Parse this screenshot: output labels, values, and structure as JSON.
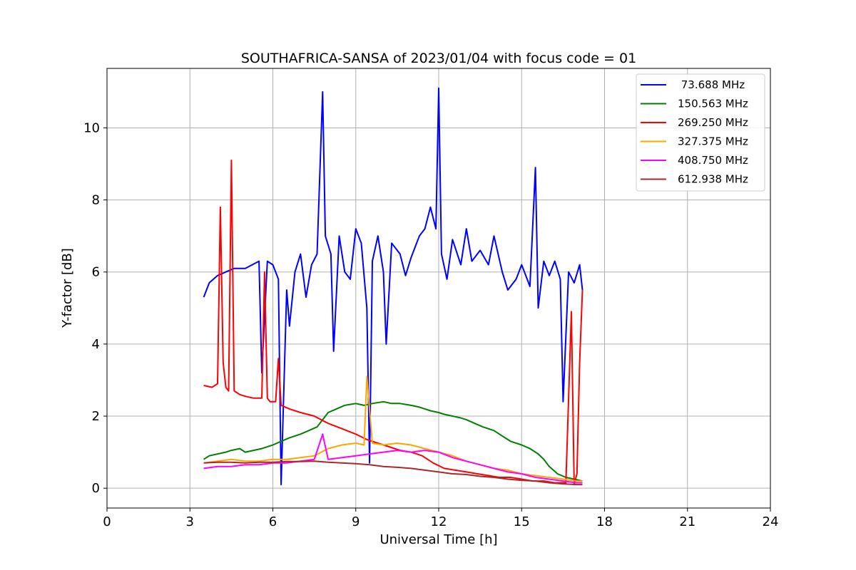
{
  "chart_data": {
    "type": "line",
    "title": "SOUTHAFRICA-SANSA of 2023/01/04 with focus code = 01",
    "xlabel": "Universal Time [h]",
    "ylabel": "Y-factor [dB]",
    "xlim": [
      0,
      24
    ],
    "ylim": [
      -0.55,
      11.65
    ],
    "xticks": [
      0,
      3,
      6,
      9,
      12,
      15,
      18,
      21,
      24
    ],
    "yticks": [
      0,
      2,
      4,
      6,
      8,
      10
    ],
    "grid": true,
    "legend_position": "upper right",
    "series": [
      {
        "name": " 73.688 MHz",
        "color": "#0000ff",
        "x": [
          3.5,
          3.7,
          4.0,
          4.3,
          4.6,
          5.0,
          5.5,
          5.6,
          5.8,
          6.0,
          6.2,
          6.3,
          6.5,
          6.6,
          6.8,
          7.0,
          7.2,
          7.4,
          7.6,
          7.8,
          7.9,
          8.1,
          8.2,
          8.4,
          8.6,
          8.8,
          9.0,
          9.2,
          9.4,
          9.5,
          9.6,
          9.8,
          10.0,
          10.1,
          10.3,
          10.6,
          10.8,
          11.0,
          11.3,
          11.5,
          11.7,
          11.9,
          12.0,
          12.1,
          12.3,
          12.5,
          12.8,
          13.0,
          13.2,
          13.5,
          13.8,
          14.0,
          14.3,
          14.5,
          14.8,
          15.0,
          15.3,
          15.5,
          15.6,
          15.8,
          16.0,
          16.2,
          16.4,
          16.5,
          16.7,
          16.9,
          17.1,
          17.2
        ],
        "y": [
          5.3,
          5.7,
          5.9,
          6.0,
          6.1,
          6.1,
          6.3,
          3.2,
          6.3,
          6.2,
          5.8,
          0.1,
          5.5,
          4.5,
          6.0,
          6.5,
          5.3,
          6.2,
          6.5,
          11.0,
          7.0,
          6.5,
          3.8,
          7.0,
          6.0,
          5.8,
          7.2,
          6.8,
          5.0,
          0.7,
          6.3,
          7.0,
          6.0,
          4.0,
          6.8,
          6.5,
          5.9,
          6.4,
          7.0,
          7.2,
          7.8,
          7.2,
          11.1,
          6.5,
          5.8,
          6.9,
          6.2,
          7.2,
          6.3,
          6.6,
          6.2,
          7.0,
          6.0,
          5.5,
          5.8,
          6.2,
          5.6,
          8.9,
          5.0,
          6.3,
          5.9,
          6.3,
          5.8,
          2.4,
          6.0,
          5.7,
          6.2,
          5.5
        ]
      },
      {
        "name": "150.563 MHz",
        "color": "#008000",
        "x": [
          3.5,
          3.7,
          4.0,
          4.3,
          4.5,
          4.8,
          5.0,
          5.3,
          5.6,
          6.0,
          6.3,
          6.6,
          7.0,
          7.3,
          7.6,
          7.8,
          8.0,
          8.3,
          8.6,
          9.0,
          9.3,
          9.6,
          10.0,
          10.3,
          10.6,
          11.0,
          11.3,
          11.5,
          11.7,
          12.0,
          12.2,
          12.5,
          12.8,
          13.0,
          13.3,
          13.6,
          14.0,
          14.3,
          14.6,
          15.0,
          15.3,
          15.6,
          15.8,
          16.0,
          16.3,
          16.6,
          16.9,
          17.2
        ],
        "y": [
          0.8,
          0.9,
          0.95,
          1.0,
          1.05,
          1.1,
          1.0,
          1.05,
          1.1,
          1.2,
          1.3,
          1.4,
          1.5,
          1.6,
          1.7,
          1.9,
          2.1,
          2.2,
          2.3,
          2.35,
          2.3,
          2.35,
          2.4,
          2.35,
          2.35,
          2.3,
          2.25,
          2.2,
          2.15,
          2.1,
          2.05,
          2.0,
          1.95,
          1.9,
          1.8,
          1.7,
          1.6,
          1.45,
          1.3,
          1.2,
          1.1,
          0.95,
          0.8,
          0.6,
          0.4,
          0.3,
          0.25,
          0.2
        ]
      },
      {
        "name": "269.250 MHz",
        "color": "#ff0000",
        "x": [
          3.5,
          3.8,
          4.0,
          4.1,
          4.2,
          4.3,
          4.4,
          4.5,
          4.6,
          4.8,
          5.0,
          5.3,
          5.6,
          5.7,
          5.8,
          5.9,
          6.1,
          6.2,
          6.3,
          6.6,
          7.0,
          7.5,
          8.0,
          8.5,
          9.0,
          9.4,
          9.8,
          10.2,
          10.6,
          11.0,
          11.4,
          11.8,
          12.2,
          12.6,
          13.0,
          13.4,
          13.8,
          14.2,
          14.6,
          15.0,
          15.4,
          15.8,
          16.2,
          16.6,
          16.8,
          16.9,
          17.0,
          17.1,
          17.2
        ],
        "y": [
          2.85,
          2.8,
          2.9,
          7.8,
          3.5,
          2.8,
          2.7,
          9.1,
          2.7,
          2.6,
          2.55,
          2.5,
          2.5,
          6.0,
          2.5,
          2.4,
          2.4,
          3.6,
          2.3,
          2.2,
          2.1,
          2.0,
          1.8,
          1.65,
          1.5,
          1.35,
          1.25,
          1.15,
          1.05,
          1.0,
          0.9,
          0.7,
          0.55,
          0.5,
          0.45,
          0.4,
          0.35,
          0.3,
          0.3,
          0.25,
          0.2,
          0.2,
          0.15,
          0.15,
          4.9,
          0.1,
          0.4,
          3.5,
          5.5
        ]
      },
      {
        "name": "327.375 MHz",
        "color": "#ffa500",
        "x": [
          3.5,
          4.0,
          4.5,
          5.0,
          5.5,
          6.0,
          6.5,
          7.0,
          7.5,
          8.0,
          8.5,
          9.0,
          9.3,
          9.4,
          9.6,
          10.0,
          10.5,
          11.0,
          11.5,
          12.0,
          12.5,
          13.0,
          13.5,
          14.0,
          14.5,
          15.0,
          15.5,
          16.0,
          16.5,
          17.0,
          17.2
        ],
        "y": [
          0.7,
          0.75,
          0.8,
          0.75,
          0.75,
          0.8,
          0.8,
          0.85,
          0.9,
          1.1,
          1.2,
          1.25,
          1.2,
          3.1,
          1.25,
          1.2,
          1.25,
          1.2,
          1.1,
          1.0,
          0.9,
          0.75,
          0.65,
          0.55,
          0.5,
          0.4,
          0.35,
          0.3,
          0.25,
          0.2,
          0.2
        ]
      },
      {
        "name": "408.750 MHz",
        "color": "#ff00ff",
        "x": [
          3.5,
          4.0,
          4.5,
          5.0,
          5.5,
          6.0,
          6.5,
          7.0,
          7.5,
          7.8,
          8.0,
          8.5,
          9.0,
          9.5,
          10.0,
          10.5,
          11.0,
          11.5,
          12.0,
          12.5,
          13.0,
          13.5,
          14.0,
          14.5,
          15.0,
          15.5,
          16.0,
          16.5,
          17.0,
          17.2
        ],
        "y": [
          0.55,
          0.6,
          0.6,
          0.65,
          0.65,
          0.7,
          0.7,
          0.75,
          0.8,
          1.5,
          0.8,
          0.85,
          0.9,
          0.95,
          1.0,
          1.05,
          1.0,
          1.05,
          1.0,
          0.85,
          0.75,
          0.65,
          0.55,
          0.45,
          0.4,
          0.3,
          0.25,
          0.2,
          0.15,
          0.15
        ]
      },
      {
        "name": "612.938 MHz",
        "color": "#a52a2a",
        "x": [
          3.5,
          4.0,
          4.5,
          5.0,
          5.5,
          6.0,
          6.5,
          7.0,
          7.5,
          8.0,
          8.5,
          9.0,
          9.5,
          10.0,
          10.5,
          11.0,
          11.5,
          12.0,
          12.5,
          13.0,
          13.5,
          14.0,
          14.5,
          15.0,
          15.5,
          16.0,
          16.5,
          17.0,
          17.2
        ],
        "y": [
          0.7,
          0.72,
          0.72,
          0.7,
          0.72,
          0.72,
          0.74,
          0.74,
          0.75,
          0.72,
          0.7,
          0.68,
          0.65,
          0.6,
          0.58,
          0.55,
          0.5,
          0.45,
          0.4,
          0.38,
          0.33,
          0.3,
          0.25,
          0.22,
          0.2,
          0.15,
          0.12,
          0.1,
          0.1
        ]
      }
    ]
  }
}
